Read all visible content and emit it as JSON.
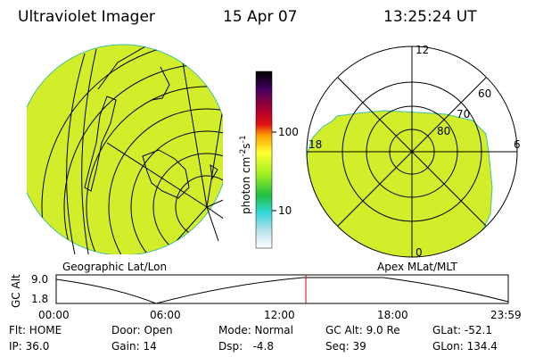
{
  "header": {
    "title": "Ultraviolet Imager",
    "date": "15 Apr 07",
    "time": "13:25:24 UT"
  },
  "left_panel": {
    "caption": "Geographic Lat/Lon"
  },
  "colorbar": {
    "unit": {
      "base": "photon cm",
      "exp1": "-2",
      "mid": "s",
      "exp2": "-1"
    },
    "labels": [
      "100",
      "10"
    ]
  },
  "right_panel": {
    "caption": "Apex MLat/MLT",
    "mlt_labels": [
      "12",
      "6",
      "0",
      "18"
    ],
    "mlat_labels": [
      "60",
      "70",
      "80"
    ]
  },
  "altitude_plot": {
    "ylabel": "GC Alt",
    "yticks": [
      "9.0",
      "1.8"
    ],
    "xticks": [
      "00:00",
      "06:00",
      "12:00",
      "18:00",
      "23:59"
    ]
  },
  "status": {
    "rows": [
      [
        "Flt: HOME",
        "Door: Open",
        "Mode: Normal",
        "GC Alt: 9.0 Re",
        "GLat: -52.1"
      ],
      [
        "IP: 36.0",
        "Gain: 14",
        "Dsp:   -4.8",
        "Seq: 39",
        "GLon: 134.4"
      ]
    ]
  }
}
